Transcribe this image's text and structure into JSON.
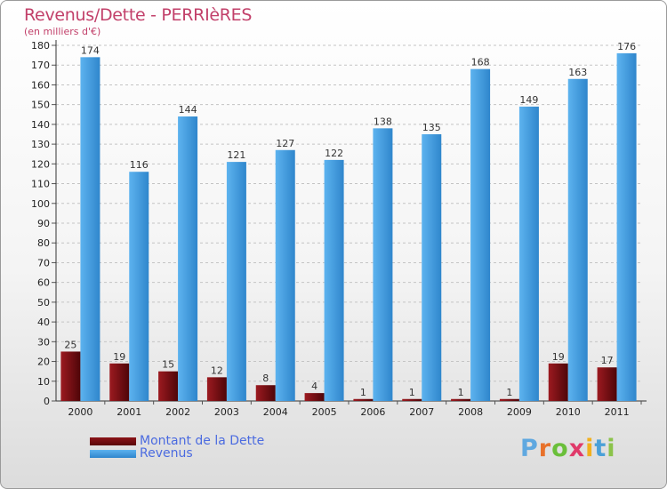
{
  "chart_data": {
    "type": "bar",
    "title": "Revenus/Dette - PERRIèRES",
    "subtitle": "(en milliers d'€)",
    "categories": [
      "2000",
      "2001",
      "2002",
      "2003",
      "2004",
      "2005",
      "2006",
      "2007",
      "2008",
      "2009",
      "2010",
      "2011"
    ],
    "series": [
      {
        "name": "Montant de la Dette",
        "color": "#7a0f14",
        "values": [
          25,
          19,
          15,
          12,
          8,
          4,
          1,
          1,
          1,
          1,
          19,
          17
        ]
      },
      {
        "name": "Revenus",
        "color": "#4ea6e6",
        "values": [
          174,
          116,
          144,
          121,
          127,
          122,
          138,
          135,
          168,
          149,
          163,
          176
        ]
      }
    ],
    "ylim": [
      0,
      180
    ],
    "ytick_step": 10,
    "grid": true,
    "xlabel": "",
    "ylabel": ""
  },
  "logo": {
    "letters": [
      "P",
      "r",
      "o",
      "x",
      "i",
      "t",
      "i"
    ],
    "colors": [
      "#5fa8e0",
      "#e8712a",
      "#6abf3a",
      "#e03a6a",
      "#f2b01e",
      "#4aa0d8",
      "#8bc34a"
    ]
  }
}
